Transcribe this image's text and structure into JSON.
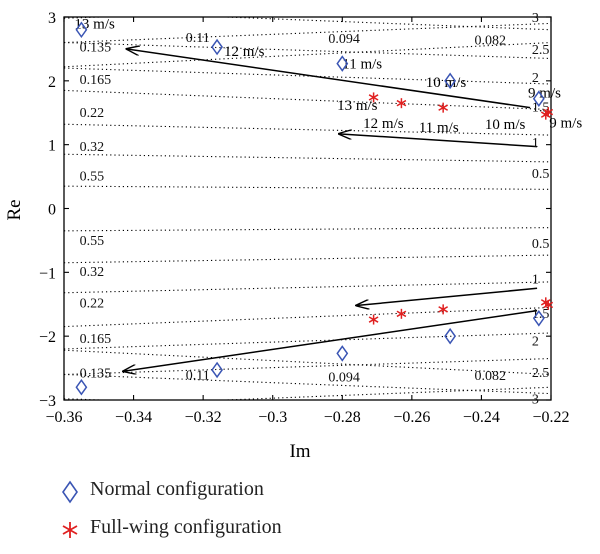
{
  "chart_data": {
    "type": "scatter",
    "title": "",
    "xlabel": "Im",
    "ylabel": "Re",
    "xlim": [
      -0.36,
      -0.22
    ],
    "ylim": [
      -3,
      3
    ],
    "x_ticks": [
      "−0.36",
      "−0.34",
      "−0.32",
      "−0.3",
      "−0.28",
      "−0.26",
      "−0.24",
      "−0.22"
    ],
    "y_ticks": [
      "−3",
      "−2",
      "−1",
      "0",
      "1",
      "2",
      "3"
    ],
    "series": [
      {
        "name": "Normal configuration",
        "marker": "diamond",
        "color": "#3a55b4",
        "points": [
          [
            -0.355,
            2.8
          ],
          [
            -0.316,
            2.53
          ],
          [
            -0.28,
            2.27
          ],
          [
            -0.249,
            2.0
          ],
          [
            -0.2235,
            1.72
          ],
          [
            -0.355,
            -2.8
          ],
          [
            -0.316,
            -2.53
          ],
          [
            -0.28,
            -2.27
          ],
          [
            -0.249,
            -2.0
          ],
          [
            -0.2235,
            -1.72
          ]
        ]
      },
      {
        "name": "Full-wing configuration",
        "marker": "asterisk",
        "color": "#e02020",
        "points": [
          [
            -0.271,
            1.74
          ],
          [
            -0.263,
            1.65
          ],
          [
            -0.251,
            1.58
          ],
          [
            -0.2215,
            1.47
          ],
          [
            -0.2208,
            1.51
          ],
          [
            -0.271,
            -1.74
          ],
          [
            -0.263,
            -1.65
          ],
          [
            -0.251,
            -1.58
          ],
          [
            -0.2215,
            -1.47
          ],
          [
            -0.2208,
            -1.51
          ]
        ]
      }
    ],
    "annotations": [
      {
        "text": "13 m/s",
        "x": -0.357,
        "y": 2.9
      },
      {
        "text": "12 m/s",
        "x": -0.314,
        "y": 2.47
      },
      {
        "text": "11 m/s",
        "x": -0.28,
        "y": 2.27
      },
      {
        "text": "10 m/s",
        "x": -0.256,
        "y": 1.98
      },
      {
        "text": "9 m/s",
        "x": -0.2266,
        "y": 1.82
      },
      {
        "text": "13 m/s",
        "x": -0.2815,
        "y": 1.62
      },
      {
        "text": "12 m/s",
        "x": -0.274,
        "y": 1.34
      },
      {
        "text": "11 m/s",
        "x": -0.258,
        "y": 1.28
      },
      {
        "text": "10 m/s",
        "x": -0.239,
        "y": 1.32
      },
      {
        "text": "9 m/s",
        "x": -0.2205,
        "y": 1.35
      }
    ],
    "arrows": [
      {
        "from": [
          -0.226,
          1.58
        ],
        "to": [
          -0.342,
          2.5
        ]
      },
      {
        "from": [
          -0.224,
          0.97
        ],
        "to": [
          -0.281,
          1.17
        ]
      },
      {
        "from": [
          -0.224,
          -1.25
        ],
        "to": [
          -0.276,
          -1.52
        ]
      },
      {
        "from": [
          -0.224,
          -1.6
        ],
        "to": [
          -0.343,
          -2.55
        ]
      }
    ],
    "grid_labels": [
      {
        "text": "0.135",
        "x": -0.3555,
        "y": 2.54
      },
      {
        "text": "0.165",
        "x": -0.3555,
        "y": 2.03
      },
      {
        "text": "0.22",
        "x": -0.3555,
        "y": 1.51
      },
      {
        "text": "0.32",
        "x": -0.3555,
        "y": 0.98
      },
      {
        "text": "0.55",
        "x": -0.3555,
        "y": 0.52
      },
      {
        "text": "0.55",
        "x": -0.3555,
        "y": -0.49
      },
      {
        "text": "0.32",
        "x": -0.3555,
        "y": -0.98
      },
      {
        "text": "0.22",
        "x": -0.3555,
        "y": -1.47
      },
      {
        "text": "0.165",
        "x": -0.3555,
        "y": -2.03
      },
      {
        "text": "0.135",
        "x": -0.3555,
        "y": -2.57
      },
      {
        "text": "0.11",
        "x": -0.325,
        "y": 2.69
      },
      {
        "text": "0.094",
        "x": -0.284,
        "y": 2.67
      },
      {
        "text": "0.082",
        "x": -0.242,
        "y": 2.65
      },
      {
        "text": "0.11",
        "x": -0.325,
        "y": -2.6
      },
      {
        "text": "0.094",
        "x": -0.284,
        "y": -2.63
      },
      {
        "text": "0.082",
        "x": -0.242,
        "y": -2.61
      },
      {
        "text": "3",
        "x": -0.2255,
        "y": 3.0
      },
      {
        "text": "2.5",
        "x": -0.2255,
        "y": 2.5
      },
      {
        "text": "2",
        "x": -0.2255,
        "y": 2.06
      },
      {
        "text": "1.5",
        "x": -0.2255,
        "y": 1.6
      },
      {
        "text": "1",
        "x": -0.2255,
        "y": 1.04
      },
      {
        "text": "0.5",
        "x": -0.2255,
        "y": 0.56
      },
      {
        "text": "0.5",
        "x": -0.2255,
        "y": -0.54
      },
      {
        "text": "1",
        "x": -0.2255,
        "y": -1.1
      },
      {
        "text": "1.5",
        "x": -0.2255,
        "y": -1.64
      },
      {
        "text": "2",
        "x": -0.2255,
        "y": -2.07
      },
      {
        "text": "2.5",
        "x": -0.2255,
        "y": -2.56
      },
      {
        "text": "3",
        "x": -0.2255,
        "y": -2.98
      }
    ],
    "dotted_lines": [
      {
        "y0": 3.1,
        "y1": 2.8
      },
      {
        "y0": 2.6,
        "y1": 2.35
      },
      {
        "y0": 2.2,
        "y1": 1.95
      },
      {
        "y0": 1.85,
        "y1": 1.55
      },
      {
        "y0": 1.32,
        "y1": 1.15
      },
      {
        "y0": 0.85,
        "y1": 0.73
      },
      {
        "y0": 0.35,
        "y1": 0.3
      },
      {
        "y0": -0.35,
        "y1": -0.3
      },
      {
        "y0": -0.85,
        "y1": -0.73
      },
      {
        "y0": -1.32,
        "y1": -1.15
      },
      {
        "y0": -1.85,
        "y1": -1.55
      },
      {
        "y0": -2.2,
        "y1": -1.95
      },
      {
        "y0": -2.6,
        "y1": -2.35
      },
      {
        "y0": -3.1,
        "y1": -2.8
      },
      {
        "y0": 2.98,
        "y1": 3.25
      },
      {
        "y0": 2.6,
        "y1": 2.9
      },
      {
        "y0": 2.22,
        "y1": 2.6
      },
      {
        "y0": -2.98,
        "y1": -3.25
      },
      {
        "y0": -2.6,
        "y1": -2.9
      },
      {
        "y0": -2.22,
        "y1": -2.6
      }
    ],
    "grid": false,
    "legend_position": "bottom"
  },
  "legend": {
    "items": [
      {
        "label": "Normal configuration",
        "icon": "diamond-marker",
        "color": "#3a55b4"
      },
      {
        "label": "Full-wing configuration",
        "icon": "asterisk-marker",
        "color": "#e02020"
      }
    ]
  }
}
